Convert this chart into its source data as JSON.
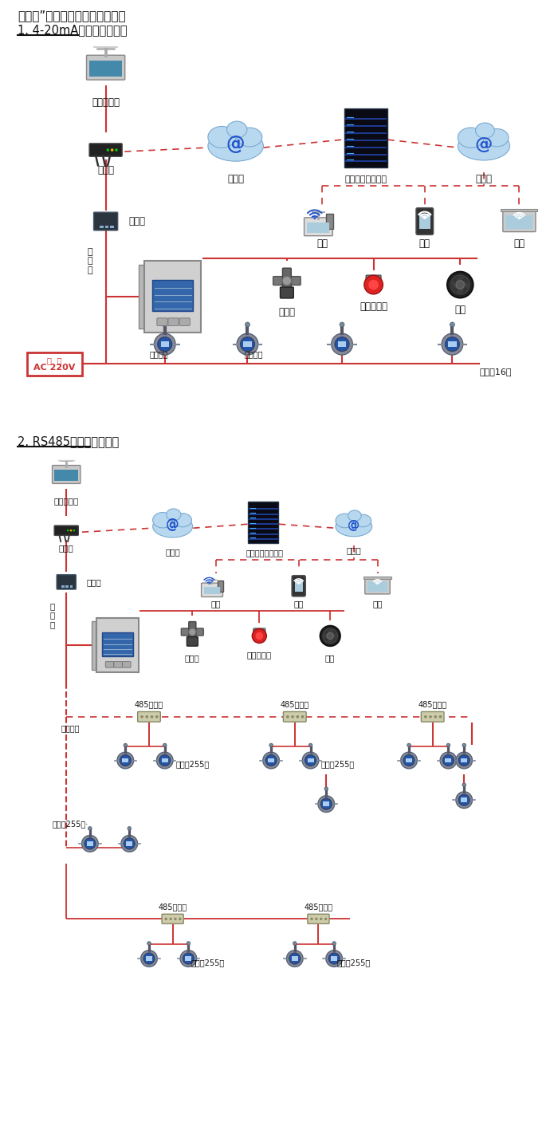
{
  "title1": "机气猫”系列带显示固定式检测仪",
  "subtitle1": "1. 4-20mA信号连接系统图",
  "subtitle2": "2. RS485信号连接系统图",
  "bg_color": "#ffffff",
  "figsize": [
    7.0,
    14.07
  ],
  "dpi": 100
}
